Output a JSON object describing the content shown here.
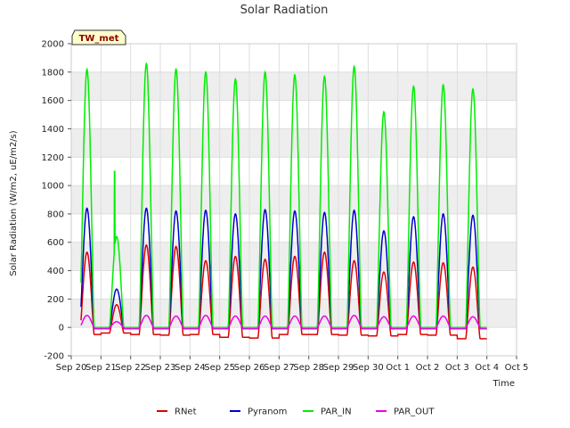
{
  "chart_data": {
    "type": "line",
    "title": "Solar Radiation",
    "xlabel": "Time",
    "ylabel": "Solar Radiation (W/m2, uE/m2/s)",
    "station_label": "TW_met",
    "ylim": [
      -200,
      2000
    ],
    "yticks": [
      -200,
      0,
      200,
      400,
      600,
      800,
      1000,
      1200,
      1400,
      1600,
      1800,
      2000
    ],
    "xlim": [
      0,
      15
    ],
    "xticks": [
      {
        "pos": 0,
        "label": "Sep 20"
      },
      {
        "pos": 1,
        "label": "Sep 21"
      },
      {
        "pos": 2,
        "label": "Sep 22"
      },
      {
        "pos": 3,
        "label": "Sep 23"
      },
      {
        "pos": 4,
        "label": "Sep 24"
      },
      {
        "pos": 5,
        "label": "Sep 25"
      },
      {
        "pos": 6,
        "label": "Sep 26"
      },
      {
        "pos": 7,
        "label": "Sep 27"
      },
      {
        "pos": 8,
        "label": "Sep 28"
      },
      {
        "pos": 9,
        "label": "Sep 29"
      },
      {
        "pos": 10,
        "label": "Sep 30"
      },
      {
        "pos": 11,
        "label": "Oct 1"
      },
      {
        "pos": 12,
        "label": "Oct 2"
      },
      {
        "pos": 13,
        "label": "Oct 3"
      },
      {
        "pos": 14,
        "label": "Oct 4"
      },
      {
        "pos": 15,
        "label": "Oct 5"
      }
    ],
    "grid": true,
    "legend_position": "bottom",
    "data_start": 0.33,
    "data_end": 14.33,
    "days": [
      {
        "day": 0,
        "par_in": 1820,
        "pyranom": 840,
        "rnet": 530,
        "par_out": 85,
        "night_rnet": -50
      },
      {
        "day": 1,
        "par_in": 640,
        "pyranom": 270,
        "rnet": 160,
        "par_out": 40,
        "night_rnet": -40,
        "spike": 1100
      },
      {
        "day": 2,
        "par_in": 1860,
        "pyranom": 840,
        "rnet": 580,
        "par_out": 85,
        "night_rnet": -50
      },
      {
        "day": 3,
        "par_in": 1820,
        "pyranom": 820,
        "rnet": 570,
        "par_out": 80,
        "night_rnet": -55
      },
      {
        "day": 4,
        "par_in": 1800,
        "pyranom": 825,
        "rnet": 470,
        "par_out": 85,
        "night_rnet": -50
      },
      {
        "day": 5,
        "par_in": 1750,
        "pyranom": 800,
        "rnet": 500,
        "par_out": 80,
        "night_rnet": -70
      },
      {
        "day": 6,
        "par_in": 1800,
        "pyranom": 830,
        "rnet": 480,
        "par_out": 80,
        "night_rnet": -75
      },
      {
        "day": 7,
        "par_in": 1780,
        "pyranom": 820,
        "rnet": 500,
        "par_out": 80,
        "night_rnet": -50
      },
      {
        "day": 8,
        "par_in": 1770,
        "pyranom": 810,
        "rnet": 530,
        "par_out": 80,
        "night_rnet": -50
      },
      {
        "day": 9,
        "par_in": 1840,
        "pyranom": 825,
        "rnet": 470,
        "par_out": 85,
        "night_rnet": -55
      },
      {
        "day": 10,
        "par_in": 1520,
        "pyranom": 680,
        "rnet": 390,
        "par_out": 75,
        "night_rnet": -60
      },
      {
        "day": 11,
        "par_in": 1700,
        "pyranom": 780,
        "rnet": 460,
        "par_out": 80,
        "night_rnet": -50
      },
      {
        "day": 12,
        "par_in": 1710,
        "pyranom": 800,
        "rnet": 455,
        "par_out": 80,
        "night_rnet": -55
      },
      {
        "day": 13,
        "par_in": 1680,
        "pyranom": 790,
        "rnet": 425,
        "par_out": 75,
        "night_rnet": -80
      }
    ],
    "series": [
      {
        "name": "RNet",
        "key": "rnet",
        "color": "#dd0000"
      },
      {
        "name": "Pyranom",
        "key": "pyranom",
        "color": "#0000cc"
      },
      {
        "name": "PAR_IN",
        "key": "par_in",
        "color": "#00ee00"
      },
      {
        "name": "PAR_OUT",
        "key": "par_out",
        "color": "#ee00ee"
      }
    ]
  }
}
